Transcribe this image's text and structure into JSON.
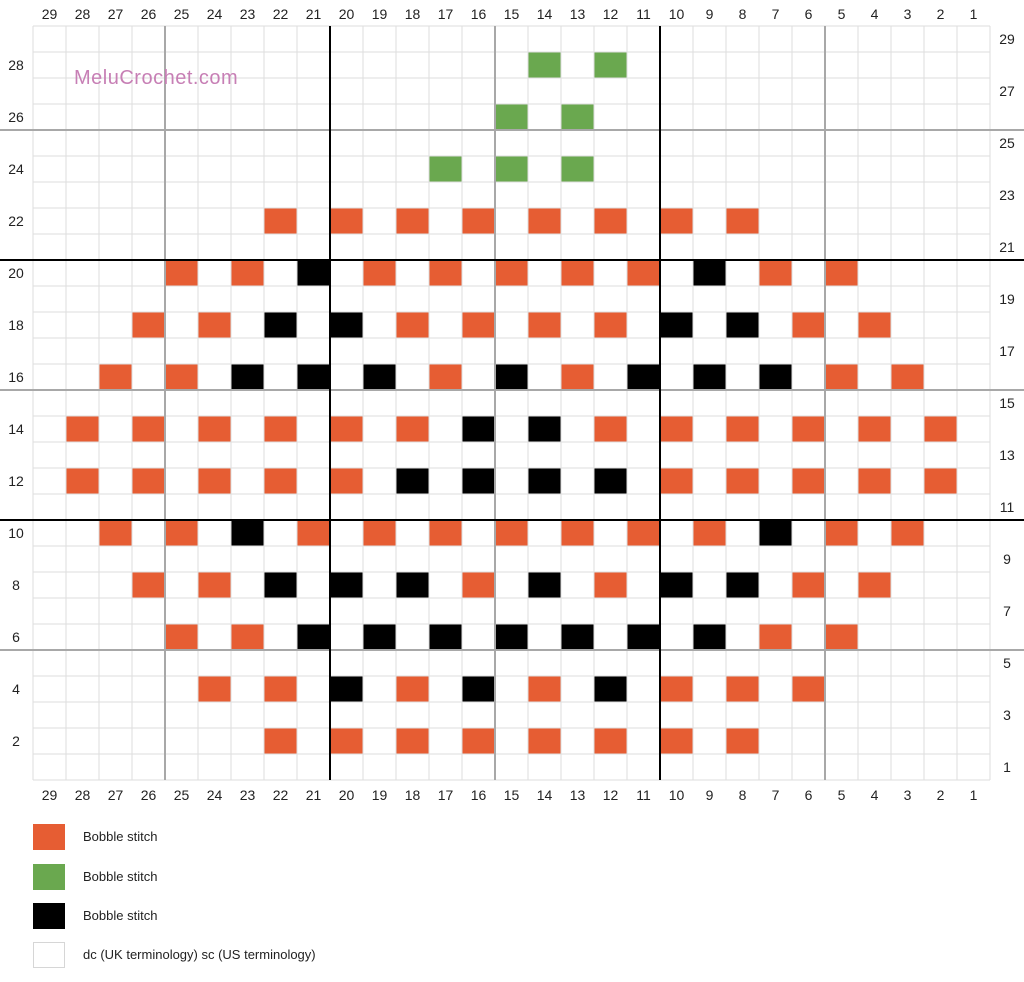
{
  "watermark": "MeluCrochet.com",
  "colors": {
    "orange": "#E65D33",
    "green": "#6AA84F",
    "black": "#000000",
    "white": "#FFFFFF",
    "watermark": "#C77FB5"
  },
  "legend": [
    {
      "color": "orange",
      "label": "Bobble stitch"
    },
    {
      "color": "green",
      "label": "Bobble stitch"
    },
    {
      "color": "black",
      "label": "Bobble stitch"
    },
    {
      "color": "white",
      "label": "dc (UK terminology) sc (US terminology)"
    }
  ],
  "chart_data": {
    "type": "grid",
    "columns": [
      29,
      28,
      27,
      26,
      25,
      24,
      23,
      22,
      21,
      20,
      19,
      18,
      17,
      16,
      15,
      14,
      13,
      12,
      11,
      10,
      9,
      8,
      7,
      6,
      5,
      4,
      3,
      2,
      1
    ],
    "row_labels_left": [
      28,
      26,
      24,
      22,
      20,
      18,
      16,
      14,
      12,
      10,
      8,
      6,
      4,
      2
    ],
    "row_labels_right": [
      29,
      27,
      25,
      23,
      21,
      19,
      17,
      15,
      13,
      11,
      9,
      7,
      5,
      3,
      1
    ],
    "rows": {
      "28": {
        "G": [
          14,
          12
        ]
      },
      "26": {
        "G": [
          15,
          13
        ]
      },
      "24": {
        "G": [
          17,
          15,
          13
        ]
      },
      "22": {
        "O": [
          22,
          20,
          18,
          16,
          14,
          12,
          10,
          8
        ]
      },
      "20": {
        "O": [
          25,
          23,
          19,
          17,
          15,
          13,
          11,
          7,
          5
        ],
        "B": [
          21,
          9
        ]
      },
      "18": {
        "O": [
          26,
          24,
          18,
          16,
          14,
          12,
          6,
          4
        ],
        "B": [
          22,
          20,
          10,
          8
        ]
      },
      "16": {
        "O": [
          27,
          25,
          17,
          13,
          5,
          3
        ],
        "B": [
          23,
          21,
          19,
          15,
          11,
          9,
          7
        ]
      },
      "14": {
        "O": [
          28,
          26,
          24,
          22,
          20,
          18,
          12,
          10,
          8,
          6,
          4,
          2
        ],
        "B": [
          16,
          14
        ]
      },
      "12": {
        "O": [
          28,
          26,
          24,
          22,
          20,
          10,
          8,
          6,
          4,
          2
        ],
        "B": [
          18,
          16,
          14,
          12
        ]
      },
      "10": {
        "O": [
          27,
          25,
          21,
          19,
          17,
          15,
          13,
          11,
          9,
          5,
          3
        ],
        "B": [
          23,
          7
        ]
      },
      "8": {
        "O": [
          26,
          24,
          16,
          12,
          6,
          4
        ],
        "B": [
          22,
          20,
          18,
          14,
          10,
          8
        ]
      },
      "6": {
        "O": [
          25,
          23,
          7,
          5
        ],
        "B": [
          21,
          19,
          17,
          15,
          13,
          11,
          9
        ]
      },
      "4": {
        "O": [
          24,
          22,
          18,
          14,
          10,
          8,
          6
        ],
        "B": [
          20,
          16,
          12
        ]
      },
      "2": {
        "O": [
          22,
          20,
          18,
          16,
          14,
          12,
          10,
          8
        ]
      }
    }
  }
}
